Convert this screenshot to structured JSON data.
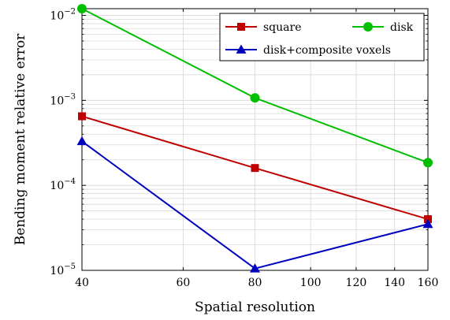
{
  "chart_data": {
    "type": "line",
    "title": "",
    "xlabel": "Spatial resolution",
    "ylabel": "Bending moment relative error",
    "x_scale": "log",
    "y_scale": "log",
    "xlim": [
      40,
      160
    ],
    "ylim": [
      1e-05,
      0.012
    ],
    "grid": true,
    "legend_position": "top-right",
    "x_ticks": [
      {
        "value": 40,
        "label": "40"
      },
      {
        "value": 60,
        "label": "60"
      },
      {
        "value": 80,
        "label": "80"
      },
      {
        "value": 100,
        "label": "100"
      },
      {
        "value": 120,
        "label": "120"
      },
      {
        "value": 140,
        "label": "140"
      },
      {
        "value": 160,
        "label": "160"
      }
    ],
    "y_ticks": [
      {
        "value": 1e-05,
        "base": "10",
        "exp": "−5"
      },
      {
        "value": 0.0001,
        "base": "10",
        "exp": "−4"
      },
      {
        "value": 0.001,
        "base": "10",
        "exp": "−3"
      },
      {
        "value": 0.01,
        "base": "10",
        "exp": "−2"
      }
    ],
    "x": [
      40,
      80,
      160
    ],
    "series": [
      {
        "name": "square",
        "color": "#bf0000",
        "marker": "square",
        "values": [
          0.00065,
          0.00016,
          4e-05
        ]
      },
      {
        "name": "disk",
        "color": "#00bf00",
        "marker": "circle",
        "values": [
          0.012,
          0.00107,
          0.000185
        ]
      },
      {
        "name": "disk+composite voxels",
        "color": "#0000bf",
        "marker": "triangle",
        "values": [
          0.00033,
          1.05e-05,
          3.5e-05
        ]
      }
    ]
  }
}
